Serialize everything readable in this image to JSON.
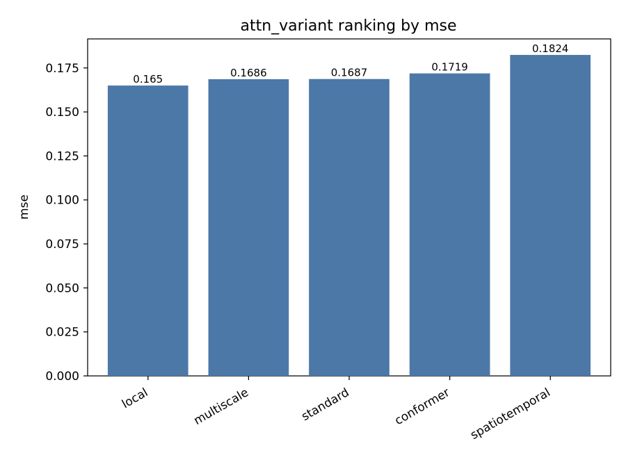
{
  "chart_data": {
    "type": "bar",
    "title": "attn_variant ranking by mse",
    "xlabel": "",
    "ylabel": "mse",
    "categories": [
      "local",
      "multiscale",
      "standard",
      "conformer",
      "spatiotemporal"
    ],
    "values": [
      0.165,
      0.1686,
      0.1687,
      0.1719,
      0.1824
    ],
    "value_labels": [
      "0.165",
      "0.1686",
      "0.1687",
      "0.1719",
      "0.1824"
    ],
    "ylim": [
      0,
      0.1915
    ],
    "yticks": [
      0.0,
      0.025,
      0.05,
      0.075,
      0.1,
      0.125,
      0.15,
      0.175
    ],
    "ytick_labels": [
      "0.000",
      "0.025",
      "0.050",
      "0.075",
      "0.100",
      "0.125",
      "0.150",
      "0.175"
    ],
    "bar_color": "#4c78a8",
    "grid": false,
    "legend": "none"
  }
}
